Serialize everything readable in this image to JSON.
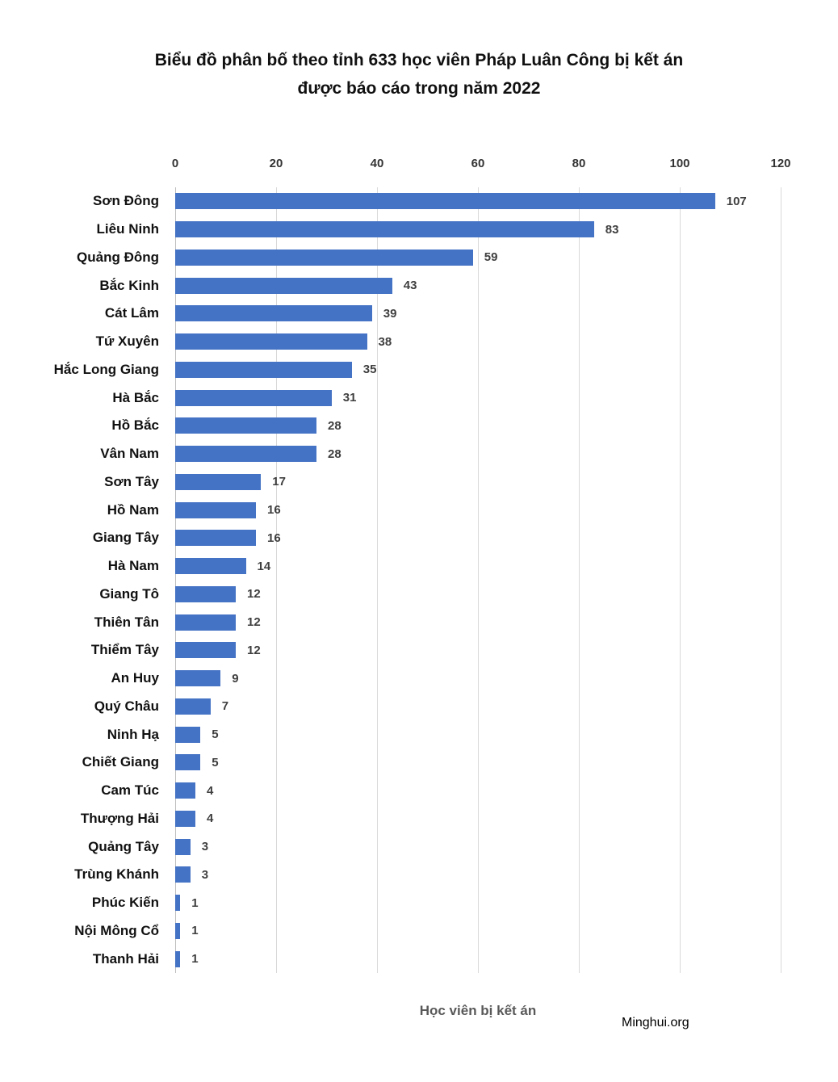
{
  "title_lines": [
    "Biểu đồ phân bố theo tỉnh 633 học viên Pháp Luân Công bị kết án",
    "được báo cáo trong năm 2022"
  ],
  "footer": {
    "xlabel": "Học viên bị kết án",
    "source": "Minghui.org"
  },
  "colors": {
    "bar": "#4472c4",
    "gridline": "#d9d9d9",
    "axis_line": "#bfbfbf",
    "value_label": "#3f3f3f",
    "xlabel_text": "#595959"
  },
  "chart_data": {
    "type": "bar",
    "orientation": "horizontal",
    "title": "Biểu đồ phân bố theo tỉnh 633 học viên Pháp Luân Công bị kết án được báo cáo trong năm 2022",
    "xlabel": "Học viên bị kết án",
    "ylabel": "",
    "xlim": [
      0,
      120
    ],
    "xticks": [
      0,
      20,
      40,
      60,
      80,
      100,
      120
    ],
    "grid": true,
    "legend": false,
    "categories": [
      "Sơn Đông",
      "Liêu Ninh",
      "Quảng Đông",
      "Bắc Kinh",
      "Cát Lâm",
      "Tứ Xuyên",
      "Hắc Long Giang",
      "Hà Bắc",
      "Hồ Bắc",
      "Vân Nam",
      "Sơn Tây",
      "Hồ Nam",
      "Giang Tây",
      "Hà Nam",
      "Giang Tô",
      "Thiên Tân",
      "Thiểm Tây",
      "An Huy",
      "Quý Châu",
      "Ninh Hạ",
      "Chiết Giang",
      "Cam Túc",
      "Thượng Hải",
      "Quảng Tây",
      "Trùng Khánh",
      "Phúc Kiến",
      "Nội Mông Cổ",
      "Thanh Hải"
    ],
    "values": [
      107,
      83,
      59,
      43,
      39,
      38,
      35,
      31,
      28,
      28,
      17,
      16,
      16,
      14,
      12,
      12,
      12,
      9,
      7,
      5,
      5,
      4,
      4,
      3,
      3,
      1,
      1,
      1
    ]
  }
}
